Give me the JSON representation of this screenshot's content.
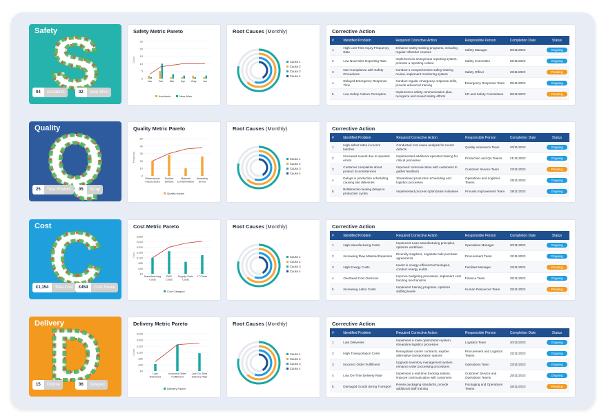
{
  "titles": {
    "pareto_suffix": "Metric Pareto",
    "root_causes": "Root Causes",
    "root_causes_sub": "(Monthly)",
    "corrective": "Corrective Action"
  },
  "root_cause_legend": [
    "Cause 1",
    "Cause 2",
    "Cause 3",
    "Cause 4"
  ],
  "colors": {
    "ongoing": "#1e9ce0",
    "pending": "#f39a1e",
    "navy": "#1f4f8f",
    "teal": "#1aa7a3",
    "orange": "#f4a63a",
    "red": "#c0392b"
  },
  "table_headers": [
    "#",
    "Identified Problem",
    "Required Corrective Action",
    "Responsible Person",
    "Completion Date",
    "Status"
  ],
  "sections": [
    {
      "title": "Safety",
      "letter": "S",
      "color": "#27b3ad",
      "stats": [
        {
          "value": "04",
          "label": "Accidents"
        },
        {
          "value": "02",
          "label": "Near Miss"
        }
      ],
      "pareto_title": "Safety Metric Pareto",
      "chart_data": {
        "type": "bar",
        "categories": [
          "Jan",
          "Feb",
          "Mar",
          "Apr",
          "May",
          "Jun"
        ],
        "series": [
          {
            "name": "Accidents",
            "values": [
              2,
              5,
              1,
              1,
              2,
              1
            ]
          },
          {
            "name": "Near Miss",
            "values": [
              1,
              10,
              3,
              2,
              1,
              2
            ]
          }
        ],
        "pareto_line": [
          3,
          8,
          9,
          10,
          10,
          10
        ],
        "ylim": [
          0,
          25
        ],
        "yticks": [
          0,
          5,
          10,
          15,
          20,
          25
        ],
        "ylabel": "Count"
      },
      "rows": [
        [
          "1",
          "High Lost Time Injury Frequency Rate",
          "Enhance safety training programs, including regular refresher courses",
          "Safety Manager",
          "20/11/2023",
          "Ongoing"
        ],
        [
          "2",
          "Low Near Miss Reporting Rate",
          "Implement an anonymous reporting system, promote a reporting culture",
          "Safety Committee",
          "22/11/2023",
          "Ongoing"
        ],
        [
          "3",
          "Non-Compliance with Safety Procedures",
          "Conduct a comprehensive safety training review, implement monitoring system",
          "Safety Officer",
          "23/11/2023",
          "Pending"
        ],
        [
          "4",
          "Delayed Emergency Response Time",
          "Conduct regular emergency response drills, provide advanced training",
          "Emergency Response Team",
          "25/11/2023",
          "Ongoing"
        ],
        [
          "5",
          "Low Safety Culture Perception",
          "Implement a safety communication plan, recognize and reward safety efforts",
          "HR and Safety Committees",
          "28/11/2023",
          "Pending"
        ]
      ]
    },
    {
      "title": "Quality",
      "letter": "Q",
      "color": "#2e5a9e",
      "stats": [
        {
          "value": "25",
          "label": "Total Product"
        },
        {
          "value": "05",
          "label": "Scrap"
        }
      ],
      "pareto_title": "Quality Metric Pareto",
      "chart_data": {
        "type": "bar",
        "categories": [
          "Dimensional Inaccuracies",
          "Surface Defects",
          "Material Contamination",
          "Assembly Errors"
        ],
        "series": [
          {
            "name": "Quality Issues",
            "values": [
              20,
              28,
              10,
              26
            ]
          }
        ],
        "pareto_line": [
          20,
          30,
          36,
          38
        ],
        "ylim": [
          0,
          50
        ],
        "yticks": [
          0,
          10,
          20,
          30,
          40,
          50
        ],
        "ylabel": "Frequency"
      },
      "rows": [
        [
          "1",
          "High defect rates in recent batches",
          "Conducted root cause analysis for recent defects",
          "Quality Assurance Team",
          "20/11/2023",
          "Ongoing"
        ],
        [
          "2",
          "Increased rework due to operator errors",
          "Implemented additional operator training for critical processes",
          "Production and QA Teams",
          "21/11/2023",
          "Ongoing"
        ],
        [
          "3",
          "Customer complaints about product inconsistencies",
          "Improved communication with customers to gather feedback",
          "Customer Service Team",
          "23/11/2023",
          "Pending"
        ],
        [
          "4",
          "Delays in production scheduling causing late deliveries",
          "Streamlined production scheduling and logistics processes",
          "Operations and Logistics Teams",
          "25/11/2023",
          "Ongoing"
        ],
        [
          "5",
          "Bottlenecks causing delays in production cycles",
          "Implemented process optimization initiatives",
          "Process Improvement Team",
          "28/11/2023",
          "Ongoing"
        ]
      ]
    },
    {
      "title": "Cost",
      "letter": "C",
      "color": "#1fa0dd",
      "stats": [
        {
          "value": "£1,154",
          "label": "Total Cost"
        },
        {
          "value": "£454",
          "label": "Cost Saved"
        }
      ],
      "pareto_title": "Cost Metric Pareto",
      "chart_data": {
        "type": "bar",
        "categories": [
          "Manufacturing Costs",
          "R&D Costs",
          "Supply Chain Costs",
          "IT Costs"
        ],
        "series": [
          {
            "name": "Cost Category",
            "values": [
              120,
              170,
              90,
              140
            ]
          }
        ],
        "pareto_line": [
          120,
          200,
          230,
          245
        ],
        "ylim": [
          0,
          280
        ],
        "yticks": [
          0,
          40,
          80,
          120,
          160,
          200,
          240,
          280
        ],
        "ytick_prefix": "£",
        "ylabel": "Cost"
      },
      "rows": [
        [
          "1",
          "High Manufacturing Costs",
          "Implement Lean Manufacturing principles, optimize workflows",
          "Operations Manager",
          "20/11/2023",
          "Ongoing"
        ],
        [
          "2",
          "Increasing Raw Material Expenses",
          "Diversify suppliers, negotiate bulk purchase agreements",
          "Procurement Team",
          "22/11/2023",
          "Ongoing"
        ],
        [
          "3",
          "High Energy Costs",
          "Invest in energy-efficient technologies, conduct energy audits",
          "Facilities Manager",
          "23/11/2023",
          "Pending"
        ],
        [
          "4",
          "Overhead Cost Overruns",
          "Improve budgeting processes, implement cost tracking mechanisms",
          "Finance Team",
          "25/11/2023",
          "Ongoing"
        ],
        [
          "5",
          "Increasing Labor Costs",
          "Implement training programs, optimize staffing levels",
          "Human Resources Team",
          "28/11/2023",
          "Pending"
        ]
      ]
    },
    {
      "title": "Delivery",
      "letter": "D",
      "color": "#f39a1e",
      "stats": [
        {
          "value": "15",
          "label": "Ontime"
        },
        {
          "value": "06",
          "label": "Delayed"
        }
      ],
      "pareto_title": "Delivery Metric Pareto",
      "chart_data": {
        "type": "bar",
        "categories": [
          "Late Deliveries",
          "Incorrect Order Fulfillment",
          "Low On-Time Delivery Rate"
        ],
        "series": [
          {
            "name": "Delivery Factor",
            "values": [
              45,
              170,
              115
            ]
          }
        ],
        "pareto_line": [
          60,
          170,
          180
        ],
        "ylim": [
          0,
          240
        ],
        "yticks": [
          0,
          40,
          80,
          120,
          160,
          200,
          240
        ],
        "ytick_prefix": "£",
        "ylabel": "Count"
      },
      "rows": [
        [
          "1",
          "Late Deliveries",
          "Implement a route optimization system, streamline logistics processes",
          "Logistics Team",
          "20/11/2023",
          "Ongoing"
        ],
        [
          "2",
          "High Transportation Costs",
          "Renegotiate carrier contracts, explore alternative transportation options",
          "Procurement and Logistics Teams",
          "22/11/2023",
          "Ongoing"
        ],
        [
          "3",
          "Incorrect Order Fulfillment",
          "Upgrade inventory management system, enhance order processing procedures",
          "Operations Team",
          "23/11/2023",
          "Ongoing"
        ],
        [
          "4",
          "Low On-Time Delivery Rate",
          "Implement a real-time tracking system, improve communication with customers",
          "Customer Service and Operations Teams",
          "25/11/2023",
          "Ongoing"
        ],
        [
          "5",
          "Damaged Goods during Transport",
          "Revise packaging standards, provide additional staff training",
          "Packaging and Operations Teams",
          "28/11/2023",
          "Pending"
        ]
      ]
    }
  ]
}
